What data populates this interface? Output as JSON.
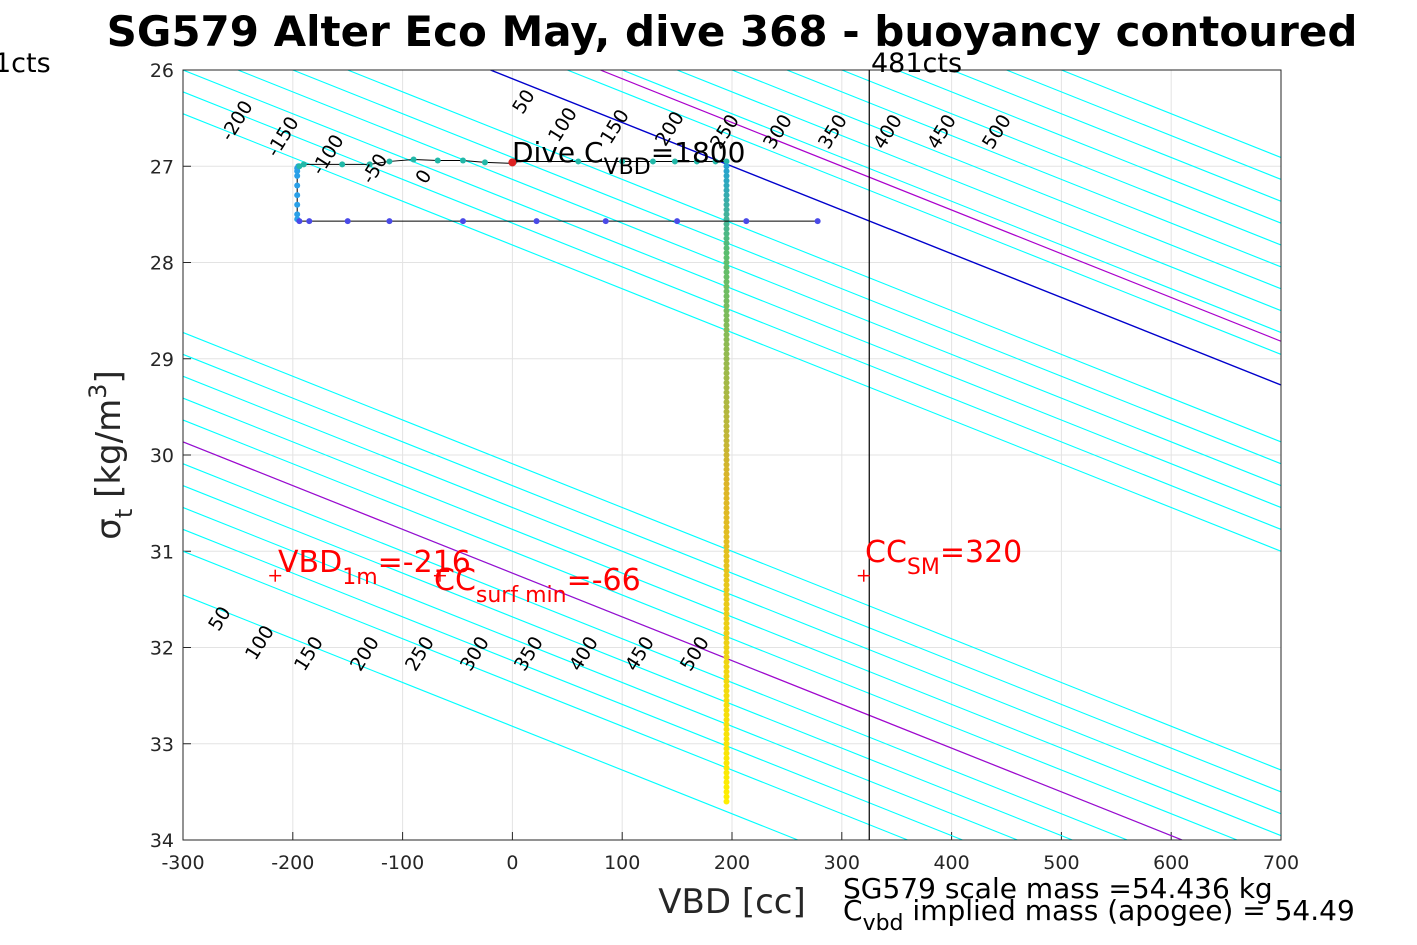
{
  "chart_data": {
    "type": "scatter",
    "title": "SG579 Alter Eco May, dive 368 - buoyancy contoured",
    "xlabel": "VBD [cc]",
    "ylabel_main": "σ",
    "ylabel_sub": "t",
    "ylabel_unit_open": " [kg/m",
    "ylabel_unit_sup": "3",
    "ylabel_unit_close": "]",
    "xlim": [
      -300,
      700
    ],
    "ylim": [
      26,
      34
    ],
    "y_reversed": true,
    "grid": true,
    "x_ticks": [
      -300,
      -200,
      -100,
      0,
      100,
      200,
      300,
      400,
      500,
      600,
      700
    ],
    "y_ticks": [
      26,
      27,
      28,
      29,
      30,
      31,
      32,
      33,
      34
    ],
    "contours": {
      "cyan_top_levels": [
        "-200",
        "-150",
        "-100",
        "-50",
        "0",
        "50",
        "100",
        "150",
        "200",
        "250",
        "300",
        "350",
        "400",
        "450",
        "500"
      ],
      "cyan_bottom_levels": [
        "50",
        "100",
        "150",
        "200",
        "250",
        "300",
        "350",
        "400",
        "450",
        "500"
      ],
      "top_line_offsets": [
        -400,
        -350,
        -300,
        -250,
        -200,
        -150,
        50,
        100,
        150,
        200,
        250,
        300,
        350,
        400,
        450,
        500
      ],
      "bottom_line_offsets": [
        -300,
        -200,
        -150,
        -100,
        -50,
        0,
        50,
        100,
        150,
        200,
        250,
        300
      ],
      "colors": {
        "contour": "#00ffff",
        "zero": "#0000cc",
        "mid": "#aa00cc"
      }
    },
    "annotations": {
      "left_cts": "1cts",
      "right_cts": "481cts",
      "right_cts_vbd": 325,
      "dive_c_vbd_main": "Dive C",
      "dive_c_vbd_sub": "VBD",
      "dive_c_vbd_value": "=1800",
      "vbd_1m_main": "VBD",
      "vbd_1m_sub": "1m",
      "vbd_1m_value": "=-216",
      "vbd_1m_at": [
        -216,
        31.15
      ],
      "cc_surf_main": "CC",
      "cc_surf_sub": "surf min",
      "cc_surf_value": "=-66",
      "cc_surf_at": [
        -66,
        31.15
      ],
      "cc_sm_main": "CC",
      "cc_sm_sub": "SM",
      "cc_sm_value": "=320",
      "cc_sm_at": [
        320,
        31.15
      ],
      "scale_mass": "SG579 scale mass =54.436 kg",
      "implied_main": "C",
      "implied_sub": "vbd",
      "implied_rest": "  implied mass (apogee) = 54.49"
    },
    "series": [
      {
        "x": [
          -196,
          -196,
          -196,
          -196,
          -196,
          -196,
          -196,
          -196,
          -195,
          -194,
          -190,
          -155,
          -130,
          -112,
          -90,
          -68,
          -45,
          -25,
          0,
          2,
          60,
          100,
          128,
          148,
          168,
          185,
          195
        ],
        "y": [
          27.55,
          27.5,
          27.4,
          27.3,
          27.2,
          27.1,
          27.05,
          27.02,
          27.0,
          27.0,
          26.98,
          26.98,
          26.98,
          26.95,
          26.93,
          26.94,
          26.94,
          26.96,
          26.97,
          26.95,
          26.95,
          26.95,
          26.95,
          26.95,
          26.95,
          26.95,
          26.95
        ]
      },
      {
        "x": [
          195,
          195,
          195,
          195,
          195,
          195,
          195,
          195,
          195,
          195,
          195
        ],
        "y": [
          27.0,
          27.3,
          27.6,
          28.0,
          28.6,
          29.2,
          29.8,
          30.4,
          31.2,
          32.2,
          33.6
        ]
      },
      {
        "x": [
          278,
          213,
          150,
          85,
          22,
          -45,
          -112,
          -150,
          -185,
          -194
        ],
        "y": [
          27.57,
          27.57,
          27.57,
          27.57,
          27.57,
          27.57,
          27.57,
          27.57,
          27.57,
          27.57
        ]
      }
    ]
  }
}
